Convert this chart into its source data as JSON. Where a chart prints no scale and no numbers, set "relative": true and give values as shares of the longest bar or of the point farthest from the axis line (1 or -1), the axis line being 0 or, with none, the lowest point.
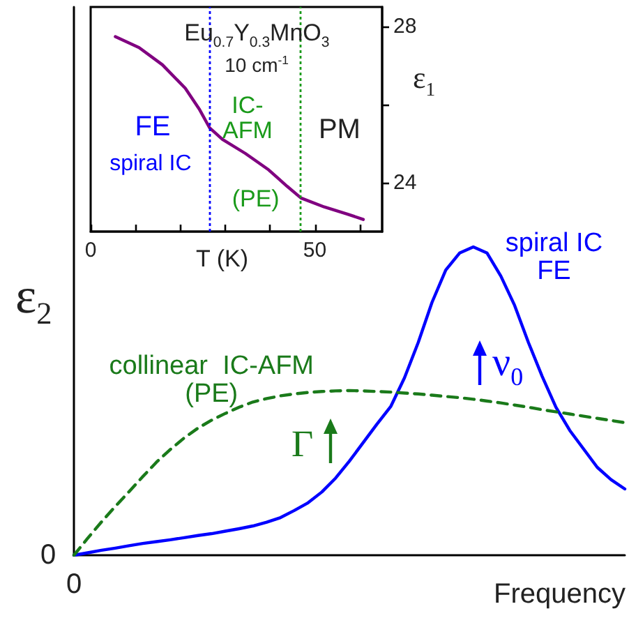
{
  "chart_data": [
    {
      "type": "line",
      "xlabel": "Frequency",
      "ylabel": "ε$_{2}$",
      "relative": true,
      "marker": "none",
      "categories": [
        null,
        null,
        null,
        null,
        null,
        null,
        null,
        null,
        null,
        null,
        null,
        null,
        null,
        null,
        null,
        null,
        null,
        null,
        null,
        null,
        null,
        null,
        null,
        null,
        null,
        null,
        null,
        null,
        null,
        null,
        null,
        null,
        null,
        null,
        null,
        null,
        null,
        null,
        null,
        null,
        null
      ],
      "series": [
        {
          "name": "spiral IC\nFE",
          "color": "#0000ff",
          "values": [
            0,
            0.008,
            0.016,
            0.023,
            0.031,
            0.038,
            0.044,
            0.05,
            0.057,
            0.064,
            0.07,
            0.078,
            0.086,
            0.095,
            0.107,
            0.122,
            0.145,
            0.17,
            0.205,
            0.25,
            0.305,
            0.365,
            0.425,
            0.482,
            0.575,
            0.69,
            0.82,
            0.925,
            0.98,
            1,
            0.98,
            0.905,
            0.81,
            0.69,
            0.58,
            0.48,
            0.405,
            0.345,
            0.285,
            0.245,
            0.215
          ]
        },
        {
          "name": "collinear  IC-AFM\n(PE)",
          "color": "#1a7a1a",
          "line_style": "dashed",
          "values": [
            0,
            0.055,
            0.108,
            0.158,
            0.206,
            0.255,
            0.302,
            0.343,
            0.38,
            0.412,
            0.438,
            0.46,
            0.48,
            0.497,
            0.508,
            0.517,
            0.523,
            0.528,
            0.531,
            0.533,
            0.534,
            0.533,
            0.531,
            0.529,
            0.526,
            0.523,
            0.519,
            0.515,
            0.511,
            0.506,
            0.5,
            0.494,
            0.487,
            0.48,
            0.472,
            0.465,
            0.458,
            0.451,
            0.444,
            0.437,
            0.43
          ]
        }
      ],
      "annotations": [
        "ν$_{0}$",
        "Γ",
        "0",
        "0"
      ]
    },
    {
      "type": "line",
      "title": "Eu$_{0.7}$Y$_{0.3}$MnO$_{3}$",
      "subtitle": "10 cm$^{-1}$",
      "xlabel": "T (K)",
      "ylabel": "ε$_{1}$",
      "marker": "none",
      "xlim": [
        0,
        65
      ],
      "xticks": [
        {
          "value": 0,
          "label": "0"
        },
        {
          "value": 10,
          "label": null
        },
        {
          "value": 20,
          "label": null
        },
        {
          "value": 30,
          "label": null
        },
        {
          "value": 40,
          "label": null
        },
        {
          "value": 50,
          "label": "50"
        },
        {
          "value": 60,
          "label": null
        }
      ],
      "ylim": [
        22.75,
        28.5
      ],
      "yticks": [
        24,
        {
          "value": 26,
          "label": null
        },
        28
      ],
      "series": [
        {
          "color": "#800080",
          "x": [
            5.5,
            10.8,
            16.0,
            21.1,
            24.2,
            26.5,
            29.4,
            34.5,
            39.7,
            43.8,
            46.9,
            52.1,
            57.2,
            60.8
          ],
          "values": [
            27.74,
            27.46,
            27.02,
            26.42,
            25.89,
            25.41,
            25.11,
            24.75,
            24.33,
            23.91,
            23.61,
            23.38,
            23.2,
            23.06
          ]
        }
      ],
      "ref_lines": [
        {
          "axis": "x",
          "value": 26.5,
          "color": "#0000ff",
          "line_style": "dotted"
        },
        {
          "axis": "x",
          "value": 46.7,
          "color": "#1a9a1a",
          "line_style": "dotted"
        }
      ],
      "annotations": [
        "FE",
        "spiral IC",
        "IC-\nAFM",
        "(PE)",
        "PM"
      ]
    }
  ]
}
